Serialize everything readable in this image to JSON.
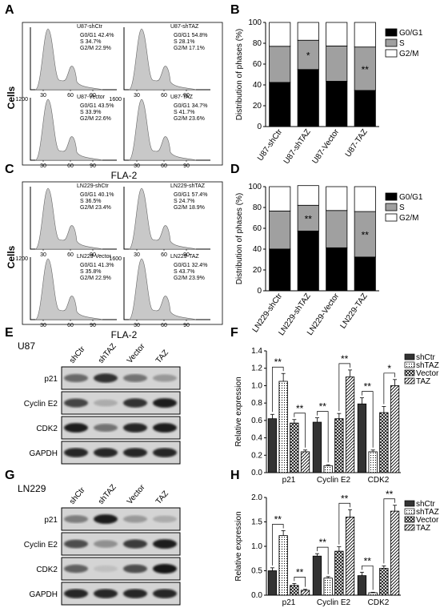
{
  "panels": [
    "A",
    "B",
    "C",
    "D",
    "E",
    "F",
    "G",
    "H"
  ],
  "flow": {
    "y_label": "Cells",
    "x_label": "FLA-2",
    "x_ticks": [
      "30",
      "60",
      "90"
    ],
    "groups": [
      {
        "hist": [
          {
            "name": "U87-shCtr",
            "ymax": "",
            "lines": [
              "G0/G1 42.4%",
              "S       34.7%",
              "G2/M   22.9%"
            ]
          },
          {
            "name": "U87-shTAZ",
            "ymax": "",
            "lines": [
              "G0/G1 54.8%",
              "S       28.1%",
              "G2/M   17.1%"
            ]
          },
          {
            "name": "U87-Vector",
            "ymax": "1200",
            "lines": [
              "G0/G1 43.5%",
              "S       33.9%",
              "G2/M   22.6%"
            ]
          },
          {
            "name": "U87-TAZ",
            "ymax": "1600",
            "lines": [
              "G0/G1 34.7%",
              "S       41.7%",
              "G2/M   23.6%"
            ]
          }
        ]
      },
      {
        "hist": [
          {
            "name": "LN229-shCtr",
            "ymax": "",
            "lines": [
              "G0/G1 40.1%",
              "S       36.5%",
              "G2/M   23.4%"
            ]
          },
          {
            "name": "LN229-shTAZ",
            "ymax": "",
            "lines": [
              "G0/G1 57.4%",
              "S       24.7%",
              "G2/M   18.9%"
            ]
          },
          {
            "name": "LN229-Vector",
            "ymax": "1200",
            "lines": [
              "G0/G1 41.3%",
              "S       35.8%",
              "G2/M   22.9%"
            ]
          },
          {
            "name": "LN229-TAZ",
            "ymax": "1600",
            "lines": [
              "G0/G1 32.4%",
              "S       43.7%",
              "G2/M   23.9%"
            ]
          }
        ]
      }
    ]
  },
  "western": {
    "E": {
      "cell": "U87",
      "lanes": [
        "shCtr",
        "shTAZ",
        "Vector",
        "TAZ"
      ],
      "bands": [
        "p21",
        "Cyclin E2",
        "CDK2",
        "GAPDH"
      ]
    },
    "G": {
      "cell": "LN229",
      "lanes": [
        "shCtr",
        "shTAZ",
        "Vector",
        "TAZ"
      ],
      "bands": [
        "p21",
        "Cyclin E2",
        "CDK2",
        "GAPDH"
      ]
    }
  },
  "colors": {
    "g0g1": "#000000",
    "s": "#a0a0a0",
    "g2m": "#ffffff",
    "shCtr": "#333333",
    "shTAZ": "#ffffff",
    "Vector": "#ffffff",
    "TAZ": "#ffffff"
  },
  "chart_data": [
    {
      "panel": "B",
      "type": "bar",
      "stacked": true,
      "categories": [
        "U87-shCtr",
        "U87-shTAZ",
        "U87-Vector",
        "U87-TAZ"
      ],
      "ylabel": "Distribution of phases (%)",
      "ylim": [
        0,
        100
      ],
      "yticks": [
        "0",
        "20",
        "40",
        "60",
        "80",
        "100"
      ],
      "legend": [
        "G0/G1",
        "S",
        "G2/M"
      ],
      "series": [
        {
          "name": "G0/G1",
          "values": [
            42.4,
            54.8,
            43.5,
            34.7
          ]
        },
        {
          "name": "S",
          "values": [
            34.7,
            28.1,
            33.9,
            41.7
          ]
        },
        {
          "name": "G2/M",
          "values": [
            22.9,
            17.1,
            22.6,
            23.6
          ]
        }
      ],
      "annotations": [
        "",
        "*",
        "",
        "**"
      ]
    },
    {
      "panel": "D",
      "type": "bar",
      "stacked": true,
      "categories": [
        "LN229-shCtr",
        "LN229-shTAZ",
        "LN229-Vector",
        "LN229-TAZ"
      ],
      "ylabel": "Distribution of phases (%)",
      "ylim": [
        0,
        100
      ],
      "yticks": [
        "0",
        "20",
        "40",
        "60",
        "80",
        "100"
      ],
      "legend": [
        "G0/G1",
        "S",
        "G2/M"
      ],
      "series": [
        {
          "name": "G0/G1",
          "values": [
            40.1,
            57.4,
            41.3,
            32.4
          ]
        },
        {
          "name": "S",
          "values": [
            36.5,
            24.7,
            35.8,
            43.7
          ]
        },
        {
          "name": "G2/M",
          "values": [
            23.4,
            18.9,
            22.9,
            23.9
          ]
        }
      ],
      "annotations": [
        "",
        "**",
        "",
        "**"
      ]
    },
    {
      "panel": "F",
      "type": "bar",
      "categories": [
        "p21",
        "Cyclin E2",
        "CDK2"
      ],
      "ylabel": "Relative expression",
      "ylim": [
        0,
        1.4
      ],
      "yticks": [
        "0.0",
        "0.2",
        "0.4",
        "0.6",
        "0.8",
        "1.0",
        "1.2",
        "1.4"
      ],
      "legend": [
        "shCtr",
        "shTAZ",
        "Vector",
        "TAZ"
      ],
      "series": [
        {
          "name": "shCtr",
          "values": [
            0.62,
            0.58,
            0.79
          ]
        },
        {
          "name": "shTAZ",
          "values": [
            1.05,
            0.08,
            0.24
          ]
        },
        {
          "name": "Vector",
          "values": [
            0.57,
            0.62,
            0.69
          ]
        },
        {
          "name": "TAZ",
          "values": [
            0.24,
            1.1,
            1.0
          ]
        }
      ],
      "errors": [
        [
          0.05,
          0.05,
          0.07
        ],
        [
          0.09,
          0.01,
          0.02
        ],
        [
          0.04,
          0.06,
          0.07
        ],
        [
          0.02,
          0.08,
          0.07
        ]
      ],
      "significance": [
        [
          "**",
          "**"
        ],
        [
          "**",
          "**"
        ],
        [
          "**",
          "*"
        ]
      ]
    },
    {
      "panel": "H",
      "type": "bar",
      "categories": [
        "p21",
        "Cyclin E2",
        "CDK2"
      ],
      "ylabel": "Relative expression",
      "ylim": [
        0,
        2.0
      ],
      "yticks": [
        "0.0",
        "0.5",
        "1.0",
        "1.5",
        "2.0"
      ],
      "legend": [
        "shCtr",
        "shTAZ",
        "Vector",
        "TAZ"
      ],
      "series": [
        {
          "name": "shCtr",
          "values": [
            0.5,
            0.8,
            0.4
          ]
        },
        {
          "name": "shTAZ",
          "values": [
            1.22,
            0.35,
            0.05
          ]
        },
        {
          "name": "Vector",
          "values": [
            0.2,
            0.9,
            0.55
          ]
        },
        {
          "name": "TAZ",
          "values": [
            0.1,
            1.6,
            1.72
          ]
        }
      ],
      "errors": [
        [
          0.06,
          0.05,
          0.07
        ],
        [
          0.1,
          0.03,
          0.01
        ],
        [
          0.04,
          0.09,
          0.05
        ],
        [
          0.02,
          0.15,
          0.12
        ]
      ],
      "significance": [
        [
          "**",
          "**"
        ],
        [
          "**",
          "**"
        ],
        [
          "**",
          "**"
        ]
      ]
    }
  ]
}
